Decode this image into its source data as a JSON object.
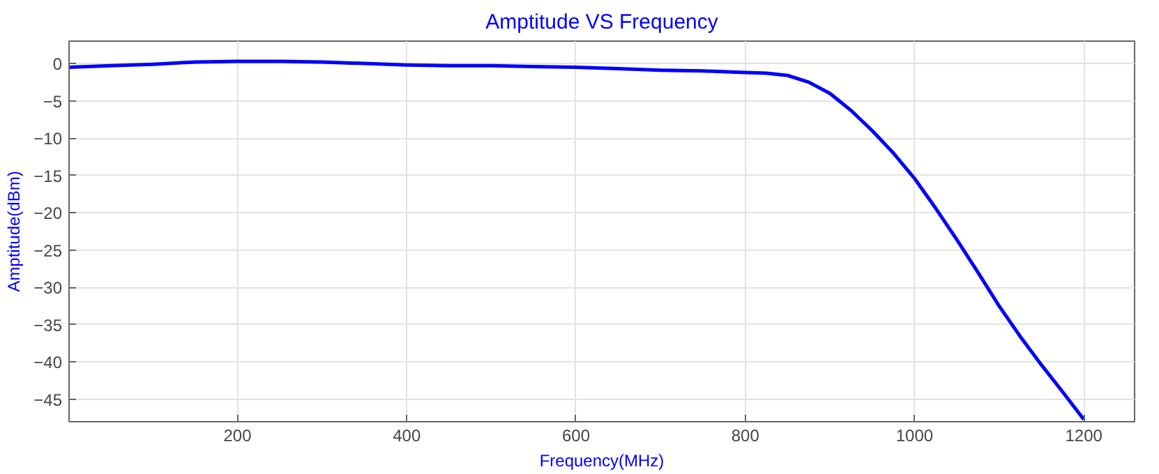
{
  "chart_data": {
    "type": "line",
    "title": "Amptitude VS Frequency",
    "xlabel": "Frequency(MHz)",
    "ylabel": "Amptitude(dBm)",
    "xlim": [
      1,
      1260
    ],
    "ylim": [
      -48,
      3
    ],
    "xticks": [
      200,
      400,
      600,
      800,
      1000,
      1200
    ],
    "yticks": [
      0,
      -5,
      -10,
      -15,
      -20,
      -25,
      -30,
      -35,
      -40,
      -45
    ],
    "grid": true,
    "line_style": "solid",
    "series": [
      {
        "color": "#0000ff",
        "x": [
          1,
          50,
          100,
          150,
          200,
          250,
          300,
          350,
          400,
          450,
          500,
          550,
          600,
          650,
          700,
          750,
          800,
          825,
          850,
          875,
          900,
          925,
          950,
          975,
          1000,
          1025,
          1050,
          1075,
          1100,
          1125,
          1150,
          1175,
          1200
        ],
        "values": [
          -0.5,
          -0.3,
          -0.1,
          0.2,
          0.3,
          0.3,
          0.2,
          0,
          -0.2,
          -0.3,
          -0.3,
          -0.4,
          -0.5,
          -0.7,
          -0.9,
          -1,
          -1.2,
          -1.3,
          -1.6,
          -2.5,
          -4,
          -6.3,
          -9,
          -12,
          -15.4,
          -19.4,
          -23.6,
          -28,
          -32.5,
          -36.6,
          -40.4,
          -44,
          -47.7
        ]
      }
    ]
  }
}
